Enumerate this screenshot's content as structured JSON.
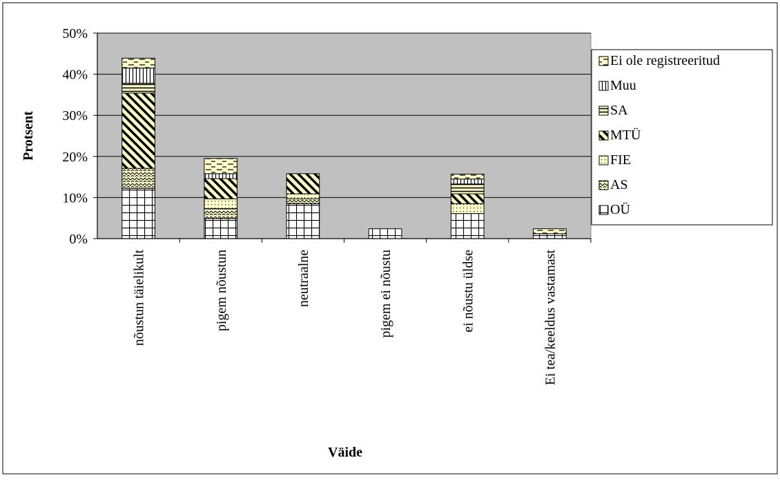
{
  "chart_data": {
    "type": "bar",
    "stacked": true,
    "xlabel": "Väide",
    "ylabel": "Protsent",
    "ylim": [
      0,
      50
    ],
    "yticks": [
      "0%",
      "10%",
      "20%",
      "30%",
      "40%",
      "50%"
    ],
    "grid": true,
    "legend_position": "right",
    "plot_background": "#c0c0c0",
    "fill_color": "#ffffcc",
    "categories": [
      "nõustun täielikult",
      "pigem nõustun",
      "neutraalne",
      "pigem ei nõustu",
      "ei nõustu üldse",
      "Ei tea/keeldus vastamast"
    ],
    "series": [
      {
        "name": "OÜ",
        "pattern": "grid-icon",
        "values": [
          12.2,
          4.9,
          8.5,
          2.4,
          6.1,
          1.2
        ]
      },
      {
        "name": "AS",
        "pattern": "zigzag-icon",
        "values": [
          4.9,
          2.4,
          1.2,
          0,
          0,
          0
        ]
      },
      {
        "name": "FIE",
        "pattern": "dots-icon",
        "values": [
          0,
          2.4,
          1.2,
          0,
          2.4,
          0
        ]
      },
      {
        "name": "MTÜ",
        "pattern": "diagonal-stripes-icon",
        "values": [
          18.3,
          4.9,
          4.9,
          0,
          2.4,
          0
        ]
      },
      {
        "name": "SA",
        "pattern": "horizontal-lines-icon",
        "values": [
          2.4,
          0,
          0,
          0,
          2.4,
          0
        ]
      },
      {
        "name": "Muu",
        "pattern": "vertical-lines-icon",
        "values": [
          3.7,
          1.2,
          0,
          0,
          1.2,
          0
        ]
      },
      {
        "name": "Ei ole registreeritud",
        "pattern": "dashes-icon",
        "values": [
          2.4,
          3.7,
          0,
          0,
          1.2,
          1.2
        ]
      }
    ]
  }
}
